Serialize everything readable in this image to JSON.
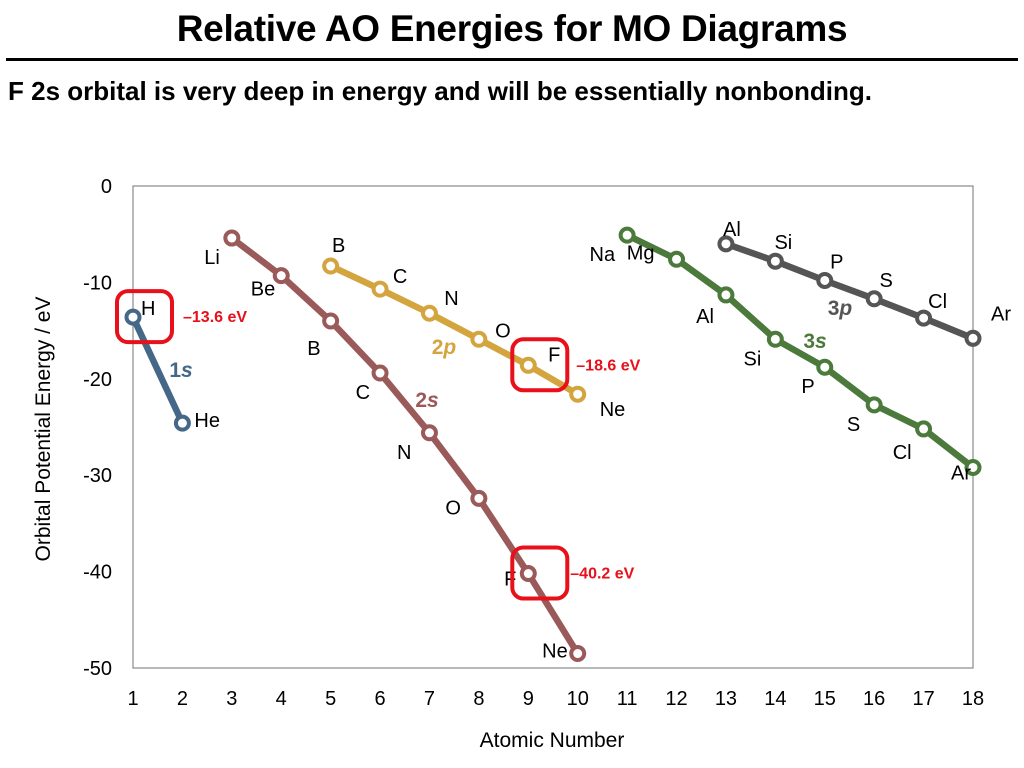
{
  "header": {
    "title": "Relative AO Energies for MO Diagrams",
    "subtitle": "F 2s orbital is very deep in energy and will be essentially nonbonding."
  },
  "chart_data": {
    "type": "line",
    "xlabel": "Atomic Number",
    "ylabel": "Orbital Potential Energy / eV",
    "xlim": [
      1,
      18
    ],
    "ylim": [
      -50,
      0
    ],
    "x_ticks": [
      "1",
      "2",
      "3",
      "4",
      "5",
      "6",
      "7",
      "8",
      "9",
      "10",
      "11",
      "12",
      "13",
      "14",
      "15",
      "16",
      "17",
      "18"
    ],
    "y_ticks": [
      "0",
      "-10",
      "-20",
      "-30",
      "-40",
      "-50"
    ],
    "grid": false,
    "series": [
      {
        "name": "1s",
        "color": "#456888",
        "x": [
          1,
          2
        ],
        "y": [
          -13.6,
          -24.6
        ],
        "labels": [
          "H",
          "He"
        ]
      },
      {
        "name": "2s",
        "color": "#9a5a5a",
        "x": [
          3,
          4,
          5,
          6,
          7,
          8,
          9,
          10
        ],
        "y": [
          -5.4,
          -9.3,
          -14.0,
          -19.4,
          -25.6,
          -32.4,
          -40.2,
          -48.5
        ],
        "labels": [
          "Li",
          "Be",
          "B",
          "C",
          "N",
          "O",
          "F",
          "Ne"
        ]
      },
      {
        "name": "2p",
        "color": "#d4a53f",
        "x": [
          5,
          6,
          7,
          8,
          9,
          10
        ],
        "y": [
          -8.3,
          -10.7,
          -13.2,
          -15.9,
          -18.6,
          -21.6
        ],
        "labels": [
          "B",
          "C",
          "N",
          "O",
          "F",
          "Ne"
        ]
      },
      {
        "name": "3s",
        "color": "#4c7a3c",
        "x": [
          11,
          12,
          13,
          14,
          15,
          16,
          17,
          18
        ],
        "y": [
          -5.1,
          -7.6,
          -11.3,
          -15.9,
          -18.8,
          -22.7,
          -25.2,
          -29.2
        ],
        "labels": [
          "Na",
          "Mg",
          "Al",
          "Si",
          "P",
          "S",
          "Cl",
          "Ar"
        ]
      },
      {
        "name": "3p",
        "color": "#555555",
        "x": [
          13,
          14,
          15,
          16,
          17,
          18
        ],
        "y": [
          -6.0,
          -7.8,
          -9.8,
          -11.7,
          -13.7,
          -15.8
        ],
        "labels": [
          "Al",
          "Si",
          "P",
          "S",
          "Cl",
          "Ar"
        ]
      }
    ],
    "annotations": [
      {
        "text": "–13.6 eV",
        "x": 1,
        "y": -13.6,
        "color": "#e8101a"
      },
      {
        "text": "–18.6 eV",
        "x": 9,
        "y": -18.6,
        "color": "#e8101a"
      },
      {
        "text": "–40.2 eV",
        "x": 9,
        "y": -40.2,
        "color": "#e8101a"
      }
    ]
  }
}
